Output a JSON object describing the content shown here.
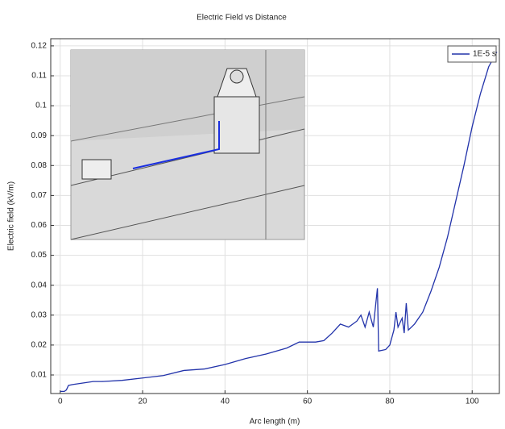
{
  "chart_data": {
    "type": "line",
    "title": "Electric Field vs Distance",
    "x_label": "Arc length (m)",
    "y_label": "Electric field (kV/m)",
    "xlim": [
      -2.3,
      106.6
    ],
    "ylim": [
      0.0038,
      0.1224
    ],
    "xticks": [
      0,
      20,
      40,
      60,
      80,
      100
    ],
    "yticks": [
      0.01,
      0.02,
      0.03,
      0.04,
      0.05,
      0.06,
      0.07,
      0.08,
      0.09,
      0.1,
      0.11,
      0.12
    ],
    "grid": true,
    "legend_position": "upper right",
    "series": [
      {
        "name": "1E-5 s",
        "color": "#2233aa",
        "x": [
          0,
          1,
          1.5,
          2,
          3,
          5,
          8,
          10,
          15,
          20,
          25,
          30,
          35,
          40,
          45,
          50,
          55,
          58,
          62,
          64,
          66,
          68,
          70,
          72,
          73,
          74,
          75,
          76,
          77,
          77.3,
          79,
          80,
          81,
          81.5,
          82,
          83,
          83.5,
          84,
          84.5,
          86,
          88,
          90,
          92,
          94,
          96,
          98,
          100,
          102,
          104,
          106
        ],
        "values": [
          0.0045,
          0.0045,
          0.005,
          0.0065,
          0.0068,
          0.0072,
          0.0078,
          0.0078,
          0.0082,
          0.009,
          0.0098,
          0.0115,
          0.012,
          0.0135,
          0.0155,
          0.017,
          0.019,
          0.021,
          0.021,
          0.0215,
          0.024,
          0.027,
          0.026,
          0.028,
          0.03,
          0.026,
          0.031,
          0.026,
          0.039,
          0.018,
          0.0185,
          0.02,
          0.025,
          0.031,
          0.026,
          0.029,
          0.024,
          0.034,
          0.025,
          0.027,
          0.031,
          0.038,
          0.046,
          0.056,
          0.068,
          0.08,
          0.093,
          0.104,
          0.113,
          0.118
        ]
      }
    ]
  }
}
